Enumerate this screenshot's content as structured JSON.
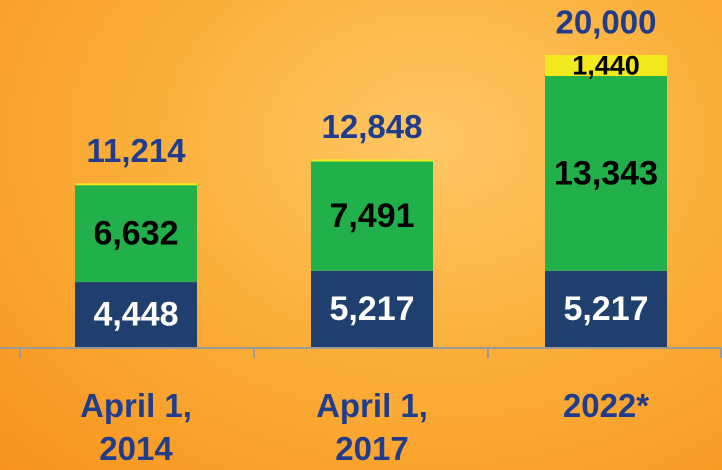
{
  "chart_data": {
    "type": "stacked-bar",
    "categories": [
      "April 1, 2014",
      "April 1, 2017",
      "2022*"
    ],
    "series": [
      {
        "color": "#1f3f6e",
        "values": [
          4448,
          5217,
          5217
        ],
        "value_labels": [
          "4,448",
          "5,217",
          "5,217"
        ]
      },
      {
        "color": "#22b04b",
        "values": [
          6632,
          7491,
          13343
        ],
        "value_labels": [
          "6,632",
          "7,491",
          "13,343"
        ]
      },
      {
        "color": "#f2ea1e",
        "values": [
          134,
          140,
          1440
        ],
        "value_labels": [
          null,
          null,
          "1,440"
        ]
      }
    ],
    "totals": [
      11214,
      12848,
      20000
    ],
    "total_labels": [
      "11,214",
      "12,848",
      "20,000"
    ]
  }
}
